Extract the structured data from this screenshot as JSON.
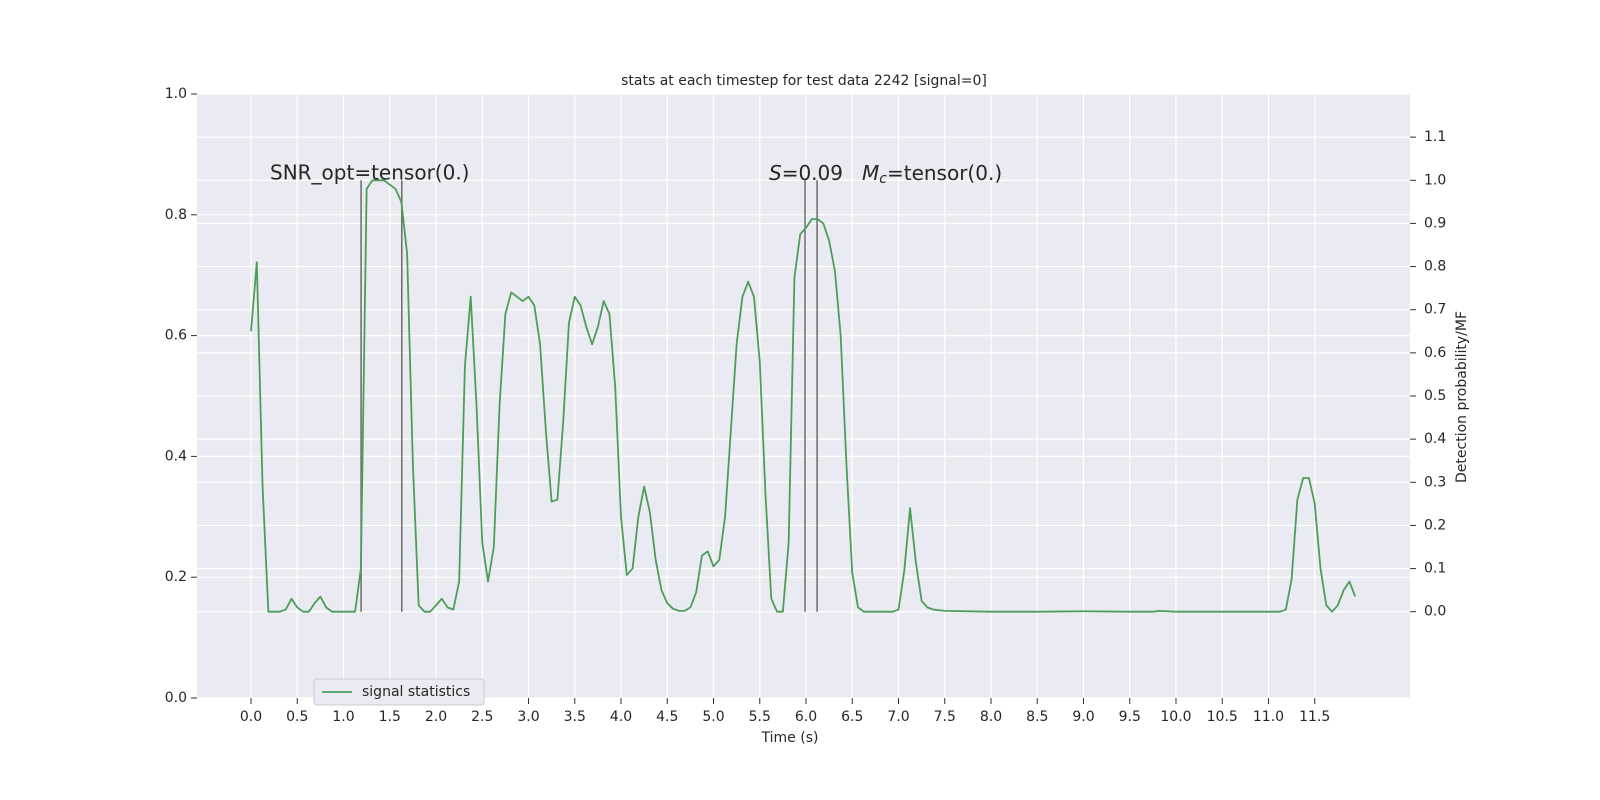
{
  "chart_data": {
    "type": "line",
    "title": "stats at each timestep for test data 2242 [signal=0]",
    "x_label": "Time (s)",
    "y2_label": "Detection probability/MF",
    "xlim": [
      -0.584,
      12.53
    ],
    "xticks": [
      {
        "value": 0,
        "label": "0.0"
      },
      0.5,
      {
        "value": 1,
        "label": "1.0"
      },
      1.5,
      {
        "value": 2,
        "label": "2.0"
      },
      2.5,
      {
        "value": 3,
        "label": "3.0"
      },
      3.5,
      {
        "value": 4,
        "label": "4.0"
      },
      4.5,
      {
        "value": 5,
        "label": "5.0"
      },
      5.5,
      {
        "value": 6,
        "label": "6.0"
      },
      6.5,
      {
        "value": 7,
        "label": "7.0"
      },
      7.5,
      {
        "value": 8,
        "label": "8.0"
      },
      8.5,
      {
        "value": 9,
        "label": "9.0"
      },
      9.5,
      {
        "value": 10,
        "label": "10.0"
      },
      10.5,
      {
        "value": 11,
        "label": "11.0"
      },
      11.5
    ],
    "ylim": [
      0,
      1
    ],
    "yticks": [
      {
        "value": 0,
        "label": "0.0"
      },
      0.2,
      0.4,
      0.6,
      0.8,
      {
        "value": 1,
        "label": "1.0"
      }
    ],
    "y2lim": [
      -0.2,
      1.2
    ],
    "y2ticks": [
      {
        "value": 0,
        "label": "0.0"
      },
      0.1,
      0.2,
      0.3,
      0.4,
      0.5,
      0.6,
      0.7,
      0.8,
      0.9,
      {
        "value": 1,
        "label": "1.0"
      },
      1.1
    ],
    "grid": true,
    "legend": "lower left",
    "series": [
      {
        "name": "signal statistics",
        "color": "#4c9e58",
        "axis": "y2",
        "x": [
          0,
          0.0625,
          0.125,
          0.1875,
          0.3125,
          0.375,
          0.4375,
          0.5,
          0.5625,
          0.625,
          0.6875,
          0.75,
          0.8125,
          0.875,
          1.125,
          1.1875,
          1.25,
          1.3125,
          1.4375,
          1.5,
          1.5625,
          1.625,
          1.6875,
          1.75,
          1.8125,
          1.875,
          1.9375,
          2.0,
          2.0625,
          2.125,
          2.1875,
          2.25,
          2.3125,
          2.375,
          2.4375,
          2.5,
          2.5625,
          2.625,
          2.6875,
          2.75,
          2.8125,
          2.875,
          2.9375,
          3.0,
          3.0625,
          3.125,
          3.1875,
          3.25,
          3.3125,
          3.375,
          3.4375,
          3.5,
          3.5625,
          3.625,
          3.6875,
          3.75,
          3.8125,
          3.875,
          3.9375,
          4.0,
          4.0625,
          4.125,
          4.1875,
          4.25,
          4.3125,
          4.375,
          4.4375,
          4.5,
          4.5625,
          4.625,
          4.6875,
          4.75,
          4.8125,
          4.875,
          4.9375,
          5.0,
          5.0625,
          5.125,
          5.1875,
          5.25,
          5.3125,
          5.375,
          5.4375,
          5.5,
          5.5625,
          5.625,
          5.6875,
          5.75,
          5.8125,
          5.875,
          5.9375,
          6.0,
          6.0625,
          6.125,
          6.1875,
          6.25,
          6.3125,
          6.375,
          6.4375,
          6.5,
          6.5625,
          6.625,
          6.9375,
          7.0,
          7.0625,
          7.125,
          7.1875,
          7.25,
          7.3125,
          7.375,
          7.5,
          8.0,
          8.5,
          9.0,
          9.5,
          9.75,
          9.8125,
          10.0,
          10.5,
          11.0,
          11.125,
          11.1875,
          11.25,
          11.3125,
          11.375,
          11.4375,
          11.5,
          11.5625,
          11.625,
          11.6875,
          11.75,
          11.8125,
          11.875,
          11.9375
        ],
        "values": [
          0.65,
          0.81,
          0.29,
          0.0,
          0.0,
          0.005,
          0.03,
          0.01,
          0.0,
          0.0,
          0.02,
          0.035,
          0.01,
          0.0,
          0.0,
          0.1,
          0.98,
          1.0,
          1.0,
          0.99,
          0.98,
          0.95,
          0.83,
          0.34,
          0.015,
          0.0,
          0.0,
          0.015,
          0.03,
          0.01,
          0.005,
          0.07,
          0.57,
          0.73,
          0.48,
          0.16,
          0.07,
          0.15,
          0.48,
          0.69,
          0.74,
          0.73,
          0.72,
          0.73,
          0.71,
          0.62,
          0.42,
          0.255,
          0.26,
          0.44,
          0.67,
          0.73,
          0.71,
          0.66,
          0.62,
          0.66,
          0.72,
          0.69,
          0.52,
          0.22,
          0.085,
          0.1,
          0.22,
          0.29,
          0.23,
          0.12,
          0.05,
          0.02,
          0.007,
          0.002,
          0.002,
          0.01,
          0.045,
          0.13,
          0.14,
          0.105,
          0.12,
          0.22,
          0.42,
          0.62,
          0.73,
          0.765,
          0.73,
          0.58,
          0.27,
          0.03,
          0.0,
          0.0,
          0.16,
          0.775,
          0.875,
          0.89,
          0.91,
          0.91,
          0.9,
          0.86,
          0.79,
          0.64,
          0.34,
          0.09,
          0.01,
          0.0,
          0.0,
          0.005,
          0.095,
          0.24,
          0.115,
          0.025,
          0.01,
          0.005,
          0.002,
          0.0,
          0.0,
          0.001,
          0.0,
          0.0,
          0.002,
          0.0,
          0.0,
          0.0,
          0.0,
          0.005,
          0.075,
          0.26,
          0.31,
          0.31,
          0.25,
          0.1,
          0.015,
          0.0,
          0.015,
          0.05,
          0.07,
          0.035
        ]
      }
    ],
    "vlines": {
      "x": [
        1.19,
        1.63,
        5.99,
        6.12
      ],
      "y2": [
        0,
        1
      ],
      "color": "#6b6b6b"
    },
    "annotations": [
      {
        "text": "SNR_opt=tensor(0.)"
      },
      {
        "symbol": "S",
        "text": "=0.09"
      },
      {
        "symbol": "M",
        "subscript": "c",
        "text": "=tensor(0.)"
      }
    ]
  }
}
